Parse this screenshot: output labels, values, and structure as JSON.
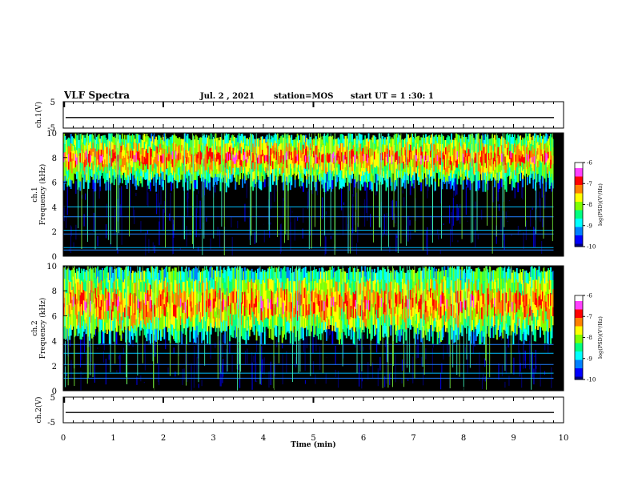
{
  "header": {
    "title": "VLF Spectra",
    "date": "Jul. 2 , 2021",
    "station": "station=MOS",
    "start_time": "start UT = 1 :30: 1"
  },
  "colors": {
    "background": "#000000",
    "colormap": [
      "#00007f",
      "#0000ff",
      "#0080ff",
      "#00ffff",
      "#00ff80",
      "#80ff00",
      "#ffff00",
      "#ff8000",
      "#ff0000",
      "#ff40ff",
      "#ffffff"
    ]
  },
  "chart_data": [
    {
      "type": "line",
      "panel": "ch1_waveform",
      "ylabel": "ch.1(V)",
      "ylim": [
        -5,
        5
      ],
      "y_ticks": [
        "5",
        "-5"
      ],
      "xlim": [
        0,
        10
      ],
      "trace_level": -1
    },
    {
      "type": "heatmap",
      "panel": "ch1_spectrogram",
      "ylabel": "ch.1\nFrequency (kHz)",
      "ylim": [
        0,
        10
      ],
      "y_ticks": [
        "0",
        "2",
        "4",
        "6",
        "8",
        "10"
      ],
      "xlim": [
        0,
        10
      ],
      "colorbar": {
        "label": "log(PSD)(V²/Hz)",
        "range": [
          -10,
          -6
        ],
        "ticks": [
          "-6",
          "-7",
          "-8",
          "-9",
          "-10"
        ]
      },
      "band_range_khz": [
        6,
        10
      ],
      "band_peak_khz": 8,
      "horizontal_lines_khz": [
        0.5,
        0.7,
        1.8,
        2.1,
        3.2,
        4.0
      ]
    },
    {
      "type": "heatmap",
      "panel": "ch2_spectrogram",
      "ylabel": "ch.2\nFrequency (kHz)",
      "ylim": [
        0,
        10
      ],
      "y_ticks": [
        "0",
        "2",
        "4",
        "6",
        "8",
        "10"
      ],
      "xlim": [
        0,
        10
      ],
      "colorbar": {
        "label": "log(PSD)(V²/Hz)",
        "range": [
          -10,
          -6
        ],
        "ticks": [
          "-6",
          "-7",
          "-8",
          "-9",
          "-10"
        ]
      },
      "band_range_khz": [
        4.5,
        10
      ],
      "band_peak_khz": 7,
      "horizontal_lines_khz": [
        1.0,
        1.4,
        2.1,
        3.0,
        3.7
      ]
    },
    {
      "type": "line",
      "panel": "ch2_waveform",
      "ylabel": "ch.2(V)",
      "ylim": [
        -5,
        5
      ],
      "y_ticks": [
        "5",
        "-5"
      ],
      "xlim": [
        0,
        10
      ],
      "trace_level": -1,
      "xlabel": "Time (min)",
      "x_ticks": [
        "0",
        "1",
        "2",
        "3",
        "4",
        "5",
        "6",
        "7",
        "8",
        "9",
        "10"
      ]
    }
  ]
}
